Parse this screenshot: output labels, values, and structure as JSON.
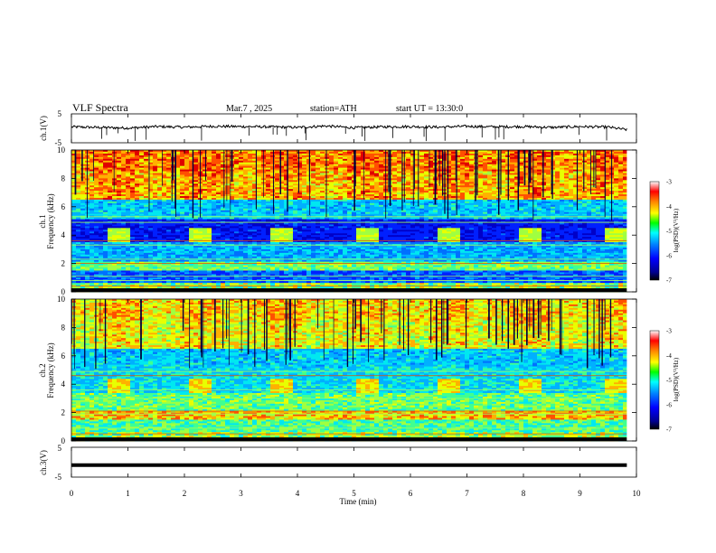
{
  "header": {
    "title": "VLF Spectra",
    "date": "Mar.7 , 2025",
    "station": "station=ATH",
    "start": "start UT = 13:30:0"
  },
  "chart_data": [
    {
      "type": "line",
      "panel": "ch1-waveform",
      "ylabel": "ch.1(V)",
      "ylim": [
        -5,
        5
      ],
      "yticks": [
        "5",
        "-5"
      ],
      "x": [
        0,
        0.5,
        1,
        1.5,
        2,
        2.5,
        3,
        3.5,
        4,
        4.5,
        5,
        5.5,
        6,
        6.5,
        7,
        7.5,
        8,
        8.5,
        9,
        9.5,
        9.83
      ],
      "values": [
        0.5,
        0.3,
        0.1,
        0.6,
        0.4,
        0.7,
        0.6,
        0.5,
        0.3,
        0.8,
        0.2,
        0.5,
        0.6,
        0.4,
        0.7,
        0.5,
        0.6,
        0.3,
        0.6,
        0.4,
        -0.5
      ]
    },
    {
      "type": "heatmap",
      "panel": "ch1-spectrogram",
      "ylabel": "Frequency (kHz)",
      "channel_label": "ch.1",
      "ylim": [
        0,
        10
      ],
      "yticks": [
        "10",
        "8",
        "6",
        "4",
        "2",
        "0"
      ],
      "colorbar": {
        "label": "log(PSD)(V²/Hz)",
        "range": [
          -7,
          -3
        ],
        "ticks": [
          "-3",
          "-4",
          "-5",
          "-6",
          "-7"
        ]
      },
      "tx_pulse_intervals_min": [
        [
          0.62,
          1.02
        ],
        [
          2.08,
          2.48
        ],
        [
          3.55,
          3.95
        ],
        [
          5.02,
          5.42
        ],
        [
          6.48,
          6.88
        ],
        [
          7.95,
          8.35
        ],
        [
          9.42,
          9.82
        ]
      ],
      "tx_pulse_band_khz": [
        3.5,
        4.6
      ]
    },
    {
      "type": "heatmap",
      "panel": "ch2-spectrogram",
      "ylabel": "Frequency (kHz)",
      "channel_label": "ch.2",
      "ylim": [
        0,
        10
      ],
      "yticks": [
        "10",
        "8",
        "6",
        "4",
        "2",
        "0"
      ],
      "colorbar": {
        "label": "log(PSD)(V²/Hz)",
        "range": [
          -7,
          -3
        ],
        "ticks": [
          "-3",
          "-4",
          "-5",
          "-6",
          "-7"
        ]
      },
      "tx_pulse_intervals_min": [
        [
          0.62,
          1.02
        ],
        [
          2.08,
          2.48
        ],
        [
          3.55,
          3.95
        ],
        [
          5.02,
          5.42
        ],
        [
          6.48,
          6.88
        ],
        [
          7.95,
          8.35
        ],
        [
          9.42,
          9.82
        ]
      ],
      "tx_pulse_band_khz": [
        3.4,
        4.5
      ]
    },
    {
      "type": "line",
      "panel": "ch3-waveform",
      "ylabel": "ch.3(V)",
      "ylim": [
        -5,
        5
      ],
      "yticks": [
        "5",
        "-5"
      ],
      "x": [
        0,
        9.83
      ],
      "values": [
        -1,
        -1
      ]
    }
  ],
  "xaxis": {
    "label": "Time (min)",
    "range": [
      0,
      10
    ],
    "ticks": [
      "0",
      "1",
      "2",
      "3",
      "4",
      "5",
      "6",
      "7",
      "8",
      "9",
      "10"
    ]
  },
  "colors": {
    "jet": [
      "#00008f",
      "#0000ff",
      "#0080ff",
      "#00ffff",
      "#80ff80",
      "#ffff00",
      "#ff8000",
      "#ff0000",
      "#800000"
    ]
  }
}
